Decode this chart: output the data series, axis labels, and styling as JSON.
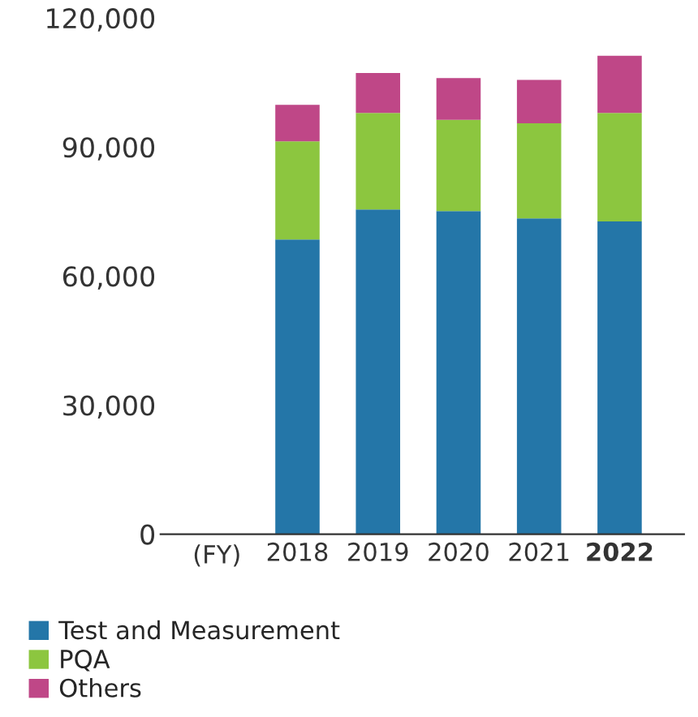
{
  "chart_data": {
    "type": "bar",
    "stacked": true,
    "xlabel": "(FY)",
    "categories": [
      "2018",
      "2019",
      "2020",
      "2021",
      "2022"
    ],
    "series": [
      {
        "name": "Test and Measurement",
        "color": "#2476a8",
        "values": [
          68500,
          75500,
          75100,
          73400,
          72700
        ]
      },
      {
        "name": "PQA",
        "color": "#8cc63f",
        "values": [
          22800,
          22400,
          21200,
          22100,
          25200
        ]
      },
      {
        "name": "Others",
        "color": "#bf4787",
        "values": [
          8500,
          9300,
          9700,
          10100,
          13300
        ]
      }
    ],
    "ylim": [
      0,
      120000
    ],
    "yticks": [
      {
        "value": 0,
        "label": "0"
      },
      {
        "value": 30000,
        "label": "30,000"
      },
      {
        "value": 60000,
        "label": "60,000"
      },
      {
        "value": 90000,
        "label": "90,000"
      },
      {
        "value": 120000,
        "label": "120,000"
      }
    ],
    "grid": false,
    "legend": "bottom left"
  }
}
